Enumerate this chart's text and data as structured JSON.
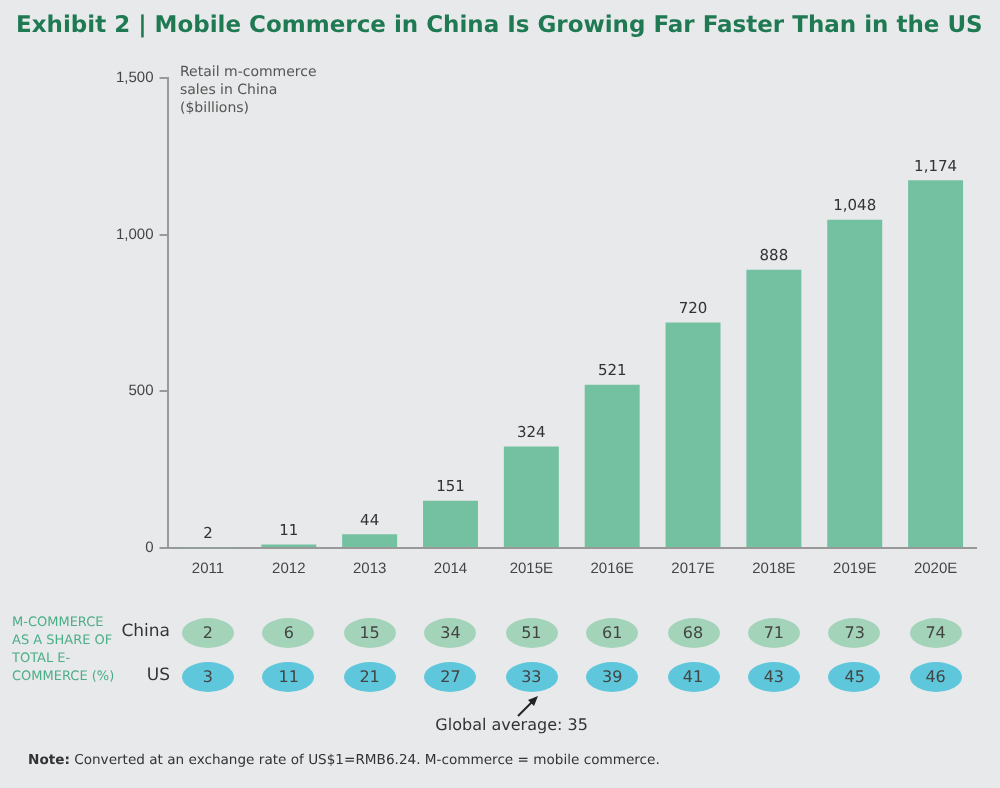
{
  "chart_data": [
    {
      "type": "bar",
      "title": "Exhibit 2 | Mobile Commerce in China Is Growing Far Faster Than in the US",
      "ylabel": "Retail m-commerce sales in China ($billions)",
      "categories": [
        "2011",
        "2012",
        "2013",
        "2014",
        "2015E",
        "2016E",
        "2017E",
        "2018E",
        "2019E",
        "2020E"
      ],
      "values": [
        2,
        11,
        44,
        151,
        324,
        521,
        720,
        888,
        1048,
        1174
      ],
      "value_labels": [
        "2",
        "11",
        "44",
        "151",
        "324",
        "521",
        "720",
        "888",
        "1,048",
        "1,174"
      ],
      "color": "#74c1a2",
      "ylim": [
        0,
        1500
      ],
      "yticks": [
        0,
        500,
        {
          "value": 1000,
          "label": "1,000"
        },
        {
          "value": 1500,
          "label": "1,500"
        }
      ],
      "grid": false,
      "legend": false
    },
    {
      "type": "heatmap",
      "ylabel": "M-COMMERCE AS A SHARE OF TOTAL E-COMMERCE (%)",
      "categories": [
        null,
        null,
        null,
        null,
        null,
        null,
        null,
        null,
        null,
        null
      ],
      "y_categories": [
        "China",
        "US"
      ],
      "data_labels": true,
      "cells": [
        [
          2,
          6,
          15,
          34,
          51,
          61,
          68,
          71,
          73,
          74
        ],
        [
          3,
          11,
          21,
          27,
          33,
          39,
          41,
          43,
          45,
          46
        ]
      ],
      "colors": [
        "#a3d3b9",
        "#5ec7db"
      ],
      "annotations": [
        "Global average: 35",
        "Note: Converted at an exchange rate of US$1=RMB6.24. M-commerce = mobile commerce."
      ]
    }
  ]
}
